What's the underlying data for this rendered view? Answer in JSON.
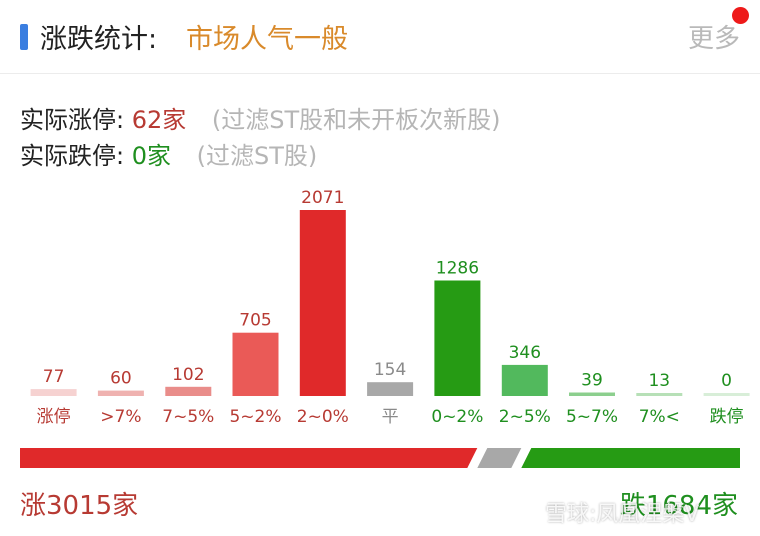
{
  "header": {
    "title": "涨跌统计:",
    "mood": "市场人气一般",
    "more": "更多"
  },
  "stats": {
    "limit_up_label": "实际涨停:",
    "limit_up_value": "62家",
    "limit_up_note": "(过滤ST股和未开板次新股)",
    "limit_down_label": "实际跌停:",
    "limit_down_value": "0家",
    "limit_down_note": "(过滤ST股)"
  },
  "chart_data": {
    "type": "bar",
    "categories": [
      "涨停",
      ">7%",
      "7~5%",
      "5~2%",
      "2~0%",
      "平",
      "0~2%",
      "2~5%",
      "5~7%",
      "7%<",
      "跌停"
    ],
    "values": [
      77,
      60,
      102,
      705,
      2071,
      154,
      1286,
      346,
      39,
      13,
      0
    ],
    "colors": [
      "#f6d2d1",
      "#efb2b0",
      "#e98d8a",
      "#ea5a57",
      "#e0292a",
      "#a8a8a8",
      "#269b14",
      "#52b95d",
      "#8ccf8e",
      "#b7e0b7",
      "#d8eed8"
    ],
    "label_colors": [
      "#b73a33",
      "#b73a33",
      "#b73a33",
      "#b73a33",
      "#b73a33",
      "#8a8a8a",
      "#1f8f1f",
      "#1f8f1f",
      "#1f8f1f",
      "#1f8f1f",
      "#1f8f1f"
    ]
  },
  "summary": {
    "up_label": "涨3015家",
    "down_label": "跌1684家",
    "up_count": 3015,
    "flat_count": 154,
    "down_count": 1684,
    "up_color": "#e0292a",
    "flat_color": "#a8a8a8",
    "down_color": "#269b14"
  },
  "watermark": "雪球:凤凰涅槃V"
}
